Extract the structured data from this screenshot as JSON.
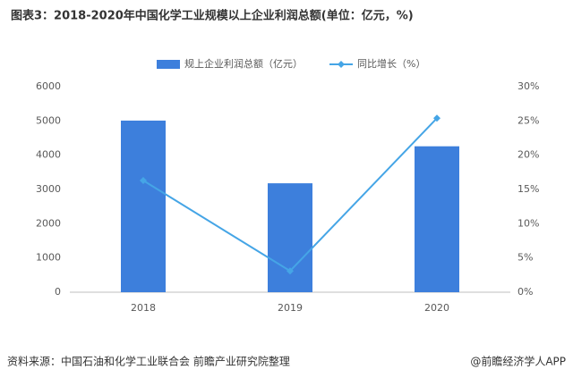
{
  "chart_data": {
    "type": "bar",
    "title": "图表3：2018-2020年中国化学工业规模以上企业利润总额(单位：亿元，%)",
    "categories": [
      "2018",
      "2019",
      "2020"
    ],
    "series": [
      {
        "name": "规上企业利润总额（亿元）",
        "color": "#3d7fdc",
        "values": [
          5010,
          3180,
          4260
        ]
      },
      {
        "name": "同比增长（%）",
        "color": "#45a5e6",
        "type": "line",
        "axis": "y2",
        "values": [
          16.3,
          3.1,
          25.4
        ]
      }
    ],
    "ylim": [
      0,
      6000
    ],
    "yticks": [
      0,
      1000,
      2000,
      3000,
      4000,
      5000,
      6000
    ],
    "y2lim": [
      0,
      30
    ],
    "y2ticks": [
      {
        "value": 0,
        "label": "0%"
      },
      {
        "value": 5,
        "label": "5%"
      },
      {
        "value": 10,
        "label": "10%"
      },
      {
        "value": 15,
        "label": "15%"
      },
      {
        "value": 20,
        "label": "20%"
      },
      {
        "value": 25,
        "label": "25%"
      },
      {
        "value": 30,
        "label": "30%"
      }
    ],
    "grid": false,
    "legend": "top"
  },
  "source": "资料来源：中国石油和化学工业联合会 前瞻产业研究院整理",
  "brand": "@前瞻经济学人APP"
}
